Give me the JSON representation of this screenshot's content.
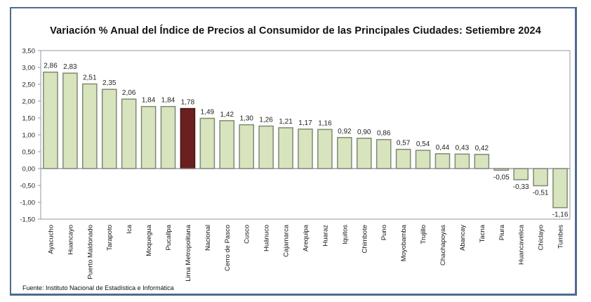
{
  "chart_data": {
    "type": "bar",
    "title": "Variación % Anual del Índice de Precios al Consumidor de las Principales Ciudades: Setiembre 2024",
    "xlabel": "",
    "ylabel": "",
    "ylim": [
      -1.5,
      3.5
    ],
    "yticks": [
      3.5,
      3.0,
      2.5,
      2.0,
      1.5,
      1.0,
      0.5,
      0.0,
      -0.5,
      -1.0,
      -1.5
    ],
    "ytick_labels": [
      "3,50",
      "3,00",
      "2,50",
      "2,00",
      "1,50",
      "1,00",
      "0,50",
      "0,00",
      "-0,50",
      "-1,00",
      "-1,50"
    ],
    "grid": false,
    "legend": "none",
    "categories": [
      "Ayacucho",
      "Huancayo",
      "Puerto Maldonado",
      "Tarapoto",
      "Ica",
      "Moquegua",
      "Pucallpa",
      "Lima Metropolitana",
      "Nacional",
      "Cerro de Pasco",
      "Cusco",
      "Huánuco",
      "Cajamarca",
      "Arequipa",
      "Huaraz",
      "Iquitos",
      "Chimbote",
      "Puno",
      "Moyobamba",
      "Trujillo",
      "Chachapoyas",
      "Abancay",
      "Tacna",
      "Piura",
      "Huancavelica",
      "Chiclayo",
      "Tumbes"
    ],
    "values": [
      2.86,
      2.83,
      2.51,
      2.35,
      2.06,
      1.84,
      1.84,
      1.78,
      1.49,
      1.42,
      1.3,
      1.26,
      1.21,
      1.17,
      1.16,
      0.92,
      0.9,
      0.86,
      0.57,
      0.54,
      0.44,
      0.43,
      0.42,
      -0.05,
      -0.33,
      -0.51,
      -1.16
    ],
    "value_labels": [
      "2,86",
      "2,83",
      "2,51",
      "2,35",
      "2,06",
      "1,84",
      "1,84",
      "1,78",
      "1,49",
      "1,42",
      "1,30",
      "1,26",
      "1,21",
      "1,17",
      "1,16",
      "0,92",
      "0,90",
      "0,86",
      "0,57",
      "0,54",
      "0,44",
      "0,43",
      "0,42",
      "-0,05",
      "-0,33",
      "-0,51",
      "-1,16"
    ],
    "highlight_category": "Lima Metropolitana",
    "colors": {
      "bar": "#d7e4bd",
      "bar_border": "#7f8a72",
      "highlight": "#6b1f1f",
      "axis": "#8c9aa8"
    },
    "source": "Fuente: Instituto  Nacional de Estadística  e Informática"
  }
}
